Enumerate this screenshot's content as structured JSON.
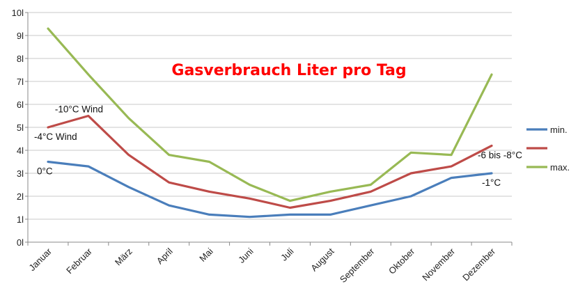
{
  "chart_data": {
    "type": "line",
    "title": "Gasverbrauch Liter pro Tag",
    "title_color": "#ff0000",
    "categories": [
      "Januar",
      "Februar",
      "März",
      "April",
      "Mai",
      "Juni",
      "Juli",
      "August",
      "September",
      "Oktober",
      "November",
      "Dezember"
    ],
    "y_tick_labels": [
      "0l",
      "1l",
      "2l",
      "3l",
      "4l",
      "5l",
      "6l",
      "7l",
      "8l",
      "9l",
      "10l"
    ],
    "ylim": [
      0,
      10
    ],
    "grid": true,
    "legend_position": "right",
    "series": [
      {
        "name": "min.",
        "color": "#4a7ebb",
        "values": [
          3.5,
          3.3,
          2.4,
          1.6,
          1.2,
          1.1,
          1.2,
          1.2,
          1.6,
          2.0,
          2.8,
          3.0
        ]
      },
      {
        "name": "",
        "color": "#be4b48",
        "values": [
          5.0,
          5.5,
          3.8,
          2.6,
          2.2,
          1.9,
          1.5,
          1.8,
          2.2,
          3.0,
          3.3,
          4.2
        ]
      },
      {
        "name": "max.",
        "color": "#98b954",
        "values": [
          9.3,
          7.3,
          5.4,
          3.8,
          3.5,
          2.5,
          1.8,
          2.2,
          2.5,
          3.9,
          3.8,
          7.3
        ]
      }
    ],
    "annotations": [
      {
        "text": "-10°C Wind",
        "category": "Februar",
        "y": 5.8
      },
      {
        "text": "-4°C Wind",
        "category": "Januar",
        "y": 4.6
      },
      {
        "text": "0°C",
        "category": "Januar",
        "y": 3.1
      },
      {
        "text": "-6 bis -8°C",
        "category": "Dezember",
        "y": 3.8
      },
      {
        "text": "-1°C",
        "category": "Dezember",
        "y": 2.6
      }
    ]
  }
}
